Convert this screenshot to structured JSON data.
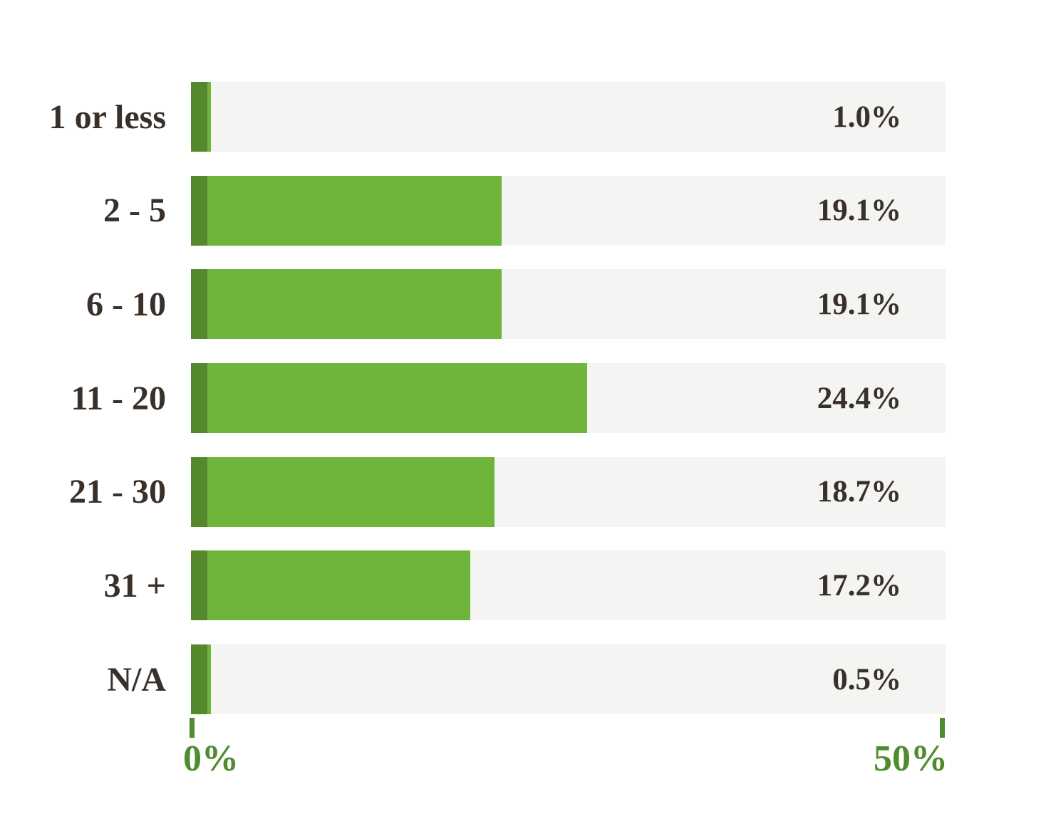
{
  "chart_data": {
    "type": "bar",
    "orientation": "horizontal",
    "title": "",
    "xlabel": "",
    "ylabel": "",
    "categories": [
      "1 or less",
      "2 - 5",
      "6 - 10",
      "11 - 20",
      "21 - 30",
      "31 +",
      "N/A"
    ],
    "values": [
      1.0,
      19.1,
      19.1,
      24.4,
      18.7,
      17.2,
      0.5
    ],
    "value_labels": [
      "1.0%",
      "19.1%",
      "19.1%",
      "24.4%",
      "18.7%",
      "17.2%",
      "0.5%"
    ],
    "xlim": [
      0,
      50
    ],
    "x_tick_labels": [
      "0%",
      "50%"
    ],
    "grid": false,
    "legend": false
  },
  "colors": {
    "bar": "#6fb53c",
    "bar_cap": "#55882c",
    "track": "#f4f4f3",
    "axis": "#4e8c2d",
    "text": "#39302a",
    "background": "#ffffff"
  }
}
